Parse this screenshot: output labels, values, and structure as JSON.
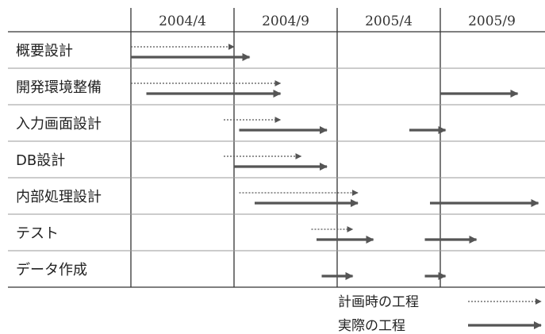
{
  "periods": [
    "2004/4",
    "2004/9",
    "2005/4",
    "2005/9"
  ],
  "tasks": [
    {
      "name": "概要設計",
      "planned": [
        [
          0.0,
          1.0
        ]
      ],
      "actual": [
        [
          0.0,
          1.15
        ]
      ]
    },
    {
      "name": "開発環境整備",
      "planned": [
        [
          0.0,
          1.45
        ]
      ],
      "actual": [
        [
          0.15,
          1.45
        ],
        [
          3.0,
          3.75
        ]
      ]
    },
    {
      "name": "入力画面設計",
      "planned": [
        [
          0.9,
          1.45
        ]
      ],
      "actual": [
        [
          1.05,
          1.9
        ],
        [
          2.7,
          3.05
        ]
      ]
    },
    {
      "name": "DB設計",
      "planned": [
        [
          0.9,
          1.65
        ]
      ],
      "actual": [
        [
          1.0,
          1.9
        ]
      ]
    },
    {
      "name": "内部処理設計",
      "planned": [
        [
          1.05,
          2.2
        ]
      ],
      "actual": [
        [
          1.2,
          2.2
        ],
        [
          2.9,
          3.95
        ]
      ]
    },
    {
      "name": "テスト",
      "planned": [
        [
          1.75,
          2.15
        ]
      ],
      "actual": [
        [
          1.8,
          2.35
        ],
        [
          2.85,
          3.35
        ]
      ]
    },
    {
      "name": "データ作成",
      "planned": [],
      "actual": [
        [
          1.85,
          2.15
        ],
        [
          2.85,
          3.05
        ]
      ]
    }
  ],
  "legend": {
    "planned_label": "計画時の工程",
    "actual_label": "実際の工程"
  }
}
